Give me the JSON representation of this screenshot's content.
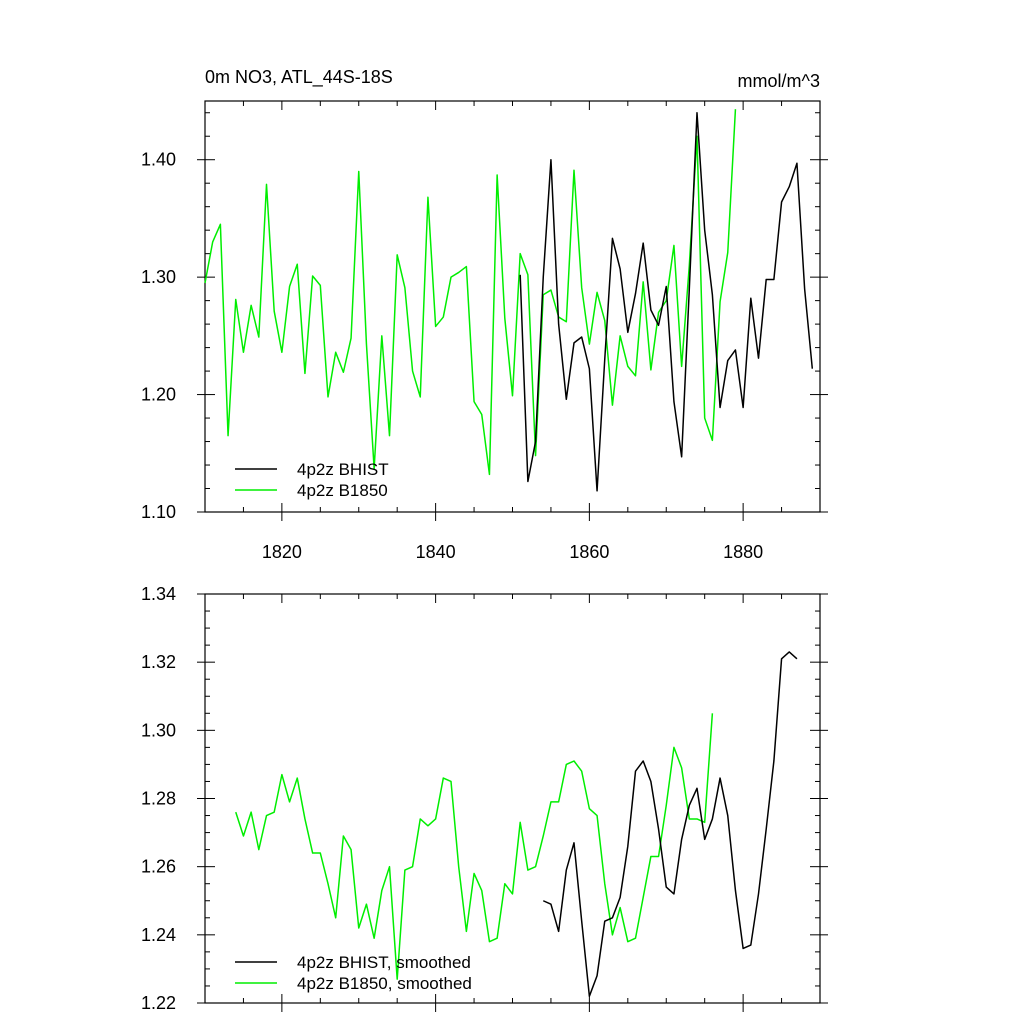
{
  "chart_data": [
    {
      "type": "line",
      "title": "0m NO3, ATL_44S-18S",
      "units": "mmol/m^3",
      "xlim": [
        1810,
        1890
      ],
      "ylim": [
        1.1,
        1.45
      ],
      "x_ticks": [
        1820,
        1840,
        1860,
        1880
      ],
      "x_tick_labels": [
        "1820",
        "1840",
        "1860",
        "1880"
      ],
      "y_ticks": [
        1.1,
        1.2,
        1.3,
        1.4
      ],
      "y_tick_labels": [
        "1.10",
        "1.20",
        "1.30",
        "1.40"
      ],
      "legend_position": "bottom-left",
      "series": [
        {
          "name": "4p2z BHIST",
          "color": "#000000",
          "x_start": 1851,
          "values": [
            1.302,
            1.126,
            1.16,
            1.3,
            1.4,
            1.26,
            1.196,
            1.244,
            1.249,
            1.222,
            1.118,
            1.23,
            1.333,
            1.307,
            1.253,
            1.286,
            1.329,
            1.272,
            1.259,
            1.292,
            1.194,
            1.147,
            1.29,
            1.44,
            1.34,
            1.285,
            1.189,
            1.229,
            1.238,
            1.189,
            1.282,
            1.231,
            1.298,
            1.298,
            1.364,
            1.377,
            1.397,
            1.29,
            1.222
          ]
        },
        {
          "name": "4p2z B1850",
          "color": "#00ee00",
          "x_start": 1810,
          "values": [
            1.295,
            1.33,
            1.345,
            1.165,
            1.281,
            1.236,
            1.276,
            1.249,
            1.379,
            1.271,
            1.236,
            1.292,
            1.311,
            1.218,
            1.301,
            1.293,
            1.198,
            1.236,
            1.219,
            1.248,
            1.39,
            1.243,
            1.137,
            1.25,
            1.165,
            1.319,
            1.291,
            1.22,
            1.198,
            1.368,
            1.258,
            1.266,
            1.3,
            1.304,
            1.309,
            1.194,
            1.183,
            1.132,
            1.387,
            1.265,
            1.199,
            1.32,
            1.302,
            1.148,
            1.285,
            1.289,
            1.266,
            1.262,
            1.391,
            1.291,
            1.243,
            1.287,
            1.263,
            1.191,
            1.25,
            1.224,
            1.216,
            1.296,
            1.221,
            1.27,
            1.28,
            1.327,
            1.224,
            1.31,
            1.42,
            1.18,
            1.161,
            1.279,
            1.321,
            1.443
          ]
        }
      ]
    },
    {
      "type": "line",
      "xlim": [
        1810,
        1890
      ],
      "ylim": [
        1.22,
        1.34
      ],
      "x_ticks": [
        1820,
        1840,
        1860,
        1880
      ],
      "y_ticks": [
        1.22,
        1.24,
        1.26,
        1.28,
        1.3,
        1.32,
        1.34
      ],
      "y_tick_labels": [
        "1.22",
        "1.24",
        "1.26",
        "1.28",
        "1.30",
        "1.32",
        "1.34"
      ],
      "legend_position": "bottom-left",
      "series": [
        {
          "name": "4p2z BHIST, smoothed",
          "color": "#000000",
          "x_start": 1854,
          "values": [
            1.25,
            1.249,
            1.241,
            1.259,
            1.267,
            1.244,
            1.222,
            1.228,
            1.244,
            1.245,
            1.251,
            1.266,
            1.288,
            1.291,
            1.285,
            1.271,
            1.254,
            1.252,
            1.268,
            1.278,
            1.283,
            1.268,
            1.274,
            1.286,
            1.275,
            1.253,
            1.236,
            1.237,
            1.252,
            1.271,
            1.291,
            1.321,
            1.323,
            1.321
          ]
        },
        {
          "name": "4p2z B1850, smoothed",
          "color": "#00ee00",
          "x_start": 1814,
          "values": [
            1.276,
            1.269,
            1.276,
            1.265,
            1.275,
            1.276,
            1.287,
            1.279,
            1.286,
            1.274,
            1.264,
            1.264,
            1.255,
            1.245,
            1.269,
            1.265,
            1.242,
            1.249,
            1.239,
            1.253,
            1.26,
            1.227,
            1.259,
            1.26,
            1.274,
            1.272,
            1.274,
            1.286,
            1.285,
            1.26,
            1.241,
            1.258,
            1.253,
            1.238,
            1.239,
            1.255,
            1.252,
            1.273,
            1.259,
            1.26,
            1.269,
            1.279,
            1.279,
            1.29,
            1.291,
            1.288,
            1.277,
            1.275,
            1.255,
            1.24,
            1.248,
            1.238,
            1.239,
            1.251,
            1.263,
            1.263,
            1.278,
            1.295,
            1.289,
            1.274,
            1.274,
            1.273,
            1.305
          ]
        }
      ]
    }
  ]
}
